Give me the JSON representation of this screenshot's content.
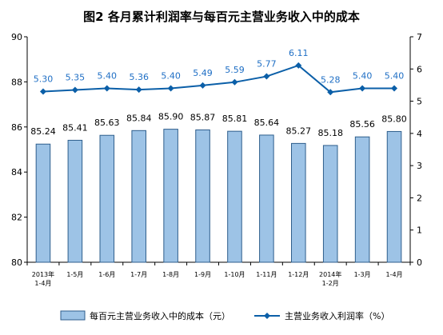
{
  "chart_data": {
    "type": "bar+line",
    "title": "图2  各月累计利润率与每百元主营业务收入中的成本",
    "categories": [
      [
        "2013年",
        "1-4月"
      ],
      [
        "1-5月"
      ],
      [
        "1-6月"
      ],
      [
        "1-7月"
      ],
      [
        "1-8月"
      ],
      [
        "1-9月"
      ],
      [
        "1-10月"
      ],
      [
        "1-11月"
      ],
      [
        "1-12月"
      ],
      [
        "2014年",
        "1-2月"
      ],
      [
        "1-3月"
      ],
      [
        "1-4月"
      ]
    ],
    "series": [
      {
        "name": "每百元主营业务收入中的成本（元）",
        "type": "bar",
        "axis": "left",
        "values": [
          85.24,
          85.41,
          85.63,
          85.84,
          85.9,
          85.87,
          85.81,
          85.64,
          85.27,
          85.18,
          85.56,
          85.8
        ],
        "labels": [
          "85.24",
          "85.41",
          "85.63",
          "85.84",
          "85.90",
          "85.87",
          "85.81",
          "85.64",
          "85.27",
          "85.18",
          "85.56",
          "85.80"
        ]
      },
      {
        "name": "主营业务收入利润率（%）",
        "type": "line",
        "axis": "right",
        "values": [
          5.3,
          5.35,
          5.4,
          5.36,
          5.4,
          5.49,
          5.59,
          5.77,
          6.11,
          5.28,
          5.4,
          5.4
        ],
        "labels": [
          "5.30",
          "5.35",
          "5.40",
          "5.36",
          "5.40",
          "5.49",
          "5.59",
          "5.77",
          "6.11",
          "5.28",
          "5.40",
          "5.40"
        ]
      }
    ],
    "y_left": {
      "min": 80,
      "max": 90,
      "ticks": [
        "80",
        "82",
        "84",
        "86",
        "88",
        "90"
      ]
    },
    "y_right": {
      "min": 0,
      "max": 7,
      "ticks": [
        "0",
        "1",
        "2",
        "3",
        "4",
        "5",
        "6",
        "7"
      ]
    },
    "grid": false,
    "legend": "bottom"
  },
  "colors": {
    "bar_fill": "#9DC3E6",
    "bar_stroke": "#2E5E8C",
    "line": "#0B5FA8",
    "label_blue": "#1F6FC5",
    "axis": "#000000"
  }
}
